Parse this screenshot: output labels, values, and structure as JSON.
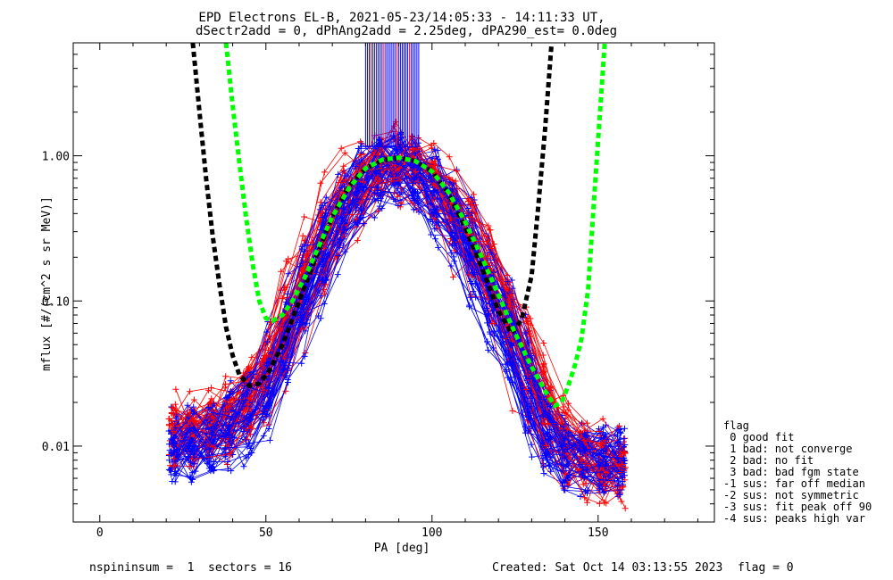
{
  "chart_data": {
    "type": "line",
    "title": "EPD Electrons EL-B, 2021-05-23/14:05:33 - 14:11:33 UT,",
    "subtitle": "dSectr2add = 0, dPhAng2add = 2.25deg, dPA290_est=   0.0deg",
    "xlabel": "PA [deg]",
    "ylabel": "mflux [#/(cm^2 s sr MeV)]",
    "xlim": [
      -8,
      185
    ],
    "ylim": [
      0.003,
      6.0
    ],
    "yscale": "log",
    "grid": false,
    "xticks": [
      0,
      50,
      100,
      150
    ],
    "xtick_labels": [
      "0",
      "50",
      "100",
      "150"
    ],
    "yticks": [
      0.01,
      0.1,
      1.0
    ],
    "ytick_labels": [
      "0.01",
      "0.10",
      "1.00"
    ],
    "colors": {
      "red": "#ff0000",
      "blue": "#0000ff",
      "black": "#000000",
      "green": "#00ff00"
    },
    "series": [
      {
        "color": "#000000",
        "style": "dashed-thick",
        "x": [
          28,
          30,
          32,
          34,
          36,
          38,
          40,
          42,
          45,
          48,
          51,
          55,
          60,
          65,
          70,
          75,
          80,
          85,
          90,
          95,
          100,
          105,
          110,
          115,
          120,
          124,
          127,
          130,
          132,
          134,
          136
        ],
        "y": [
          6.0,
          2.0,
          0.7,
          0.28,
          0.13,
          0.066,
          0.042,
          0.031,
          0.026,
          0.027,
          0.033,
          0.05,
          0.1,
          0.2,
          0.38,
          0.62,
          0.82,
          0.93,
          0.97,
          0.92,
          0.78,
          0.55,
          0.32,
          0.17,
          0.085,
          0.06,
          0.075,
          0.15,
          0.45,
          1.5,
          6.0
        ]
      },
      {
        "color": "#00ff00",
        "style": "dashed-thick",
        "x": [
          38,
          40,
          42,
          44,
          46,
          48,
          50,
          52,
          55,
          58,
          62,
          66,
          70,
          75,
          80,
          85,
          90,
          95,
          100,
          105,
          110,
          115,
          120,
          125,
          130,
          134,
          137,
          139,
          141,
          143,
          145,
          147,
          149,
          152
        ],
        "y": [
          6.0,
          2.2,
          0.9,
          0.38,
          0.18,
          0.1,
          0.076,
          0.073,
          0.08,
          0.1,
          0.15,
          0.24,
          0.38,
          0.6,
          0.82,
          0.94,
          0.97,
          0.92,
          0.78,
          0.56,
          0.35,
          0.2,
          0.11,
          0.06,
          0.035,
          0.024,
          0.019,
          0.02,
          0.026,
          0.036,
          0.055,
          0.12,
          0.6,
          6.0
        ]
      }
    ],
    "bundles": [
      {
        "name": "red spectra",
        "color": "#ff0000",
        "count": 40,
        "profile": {
          "x": [
            22,
            30,
            40,
            50,
            60,
            70,
            80,
            86,
            92,
            98,
            105,
            115,
            125,
            135,
            140,
            148,
            156
          ],
          "y": [
            0.012,
            0.013,
            0.015,
            0.03,
            0.12,
            0.35,
            0.75,
            0.9,
            0.88,
            0.78,
            0.5,
            0.2,
            0.06,
            0.015,
            0.01,
            0.008,
            0.007
          ]
        }
      },
      {
        "name": "blue spectra",
        "color": "#0000ff",
        "count": 60,
        "profile": {
          "x": [
            22,
            30,
            40,
            50,
            60,
            70,
            80,
            86,
            92,
            98,
            105,
            115,
            125,
            135,
            140,
            148,
            156
          ],
          "y": [
            0.01,
            0.011,
            0.013,
            0.025,
            0.09,
            0.3,
            0.7,
            0.85,
            0.85,
            0.72,
            0.45,
            0.17,
            0.05,
            0.012,
            0.009,
            0.008,
            0.008
          ]
        }
      },
      {
        "name": "peak spikes",
        "color": "#0000ff",
        "x_range": [
          80,
          96
        ],
        "count": 30,
        "y_top": 6.0,
        "y_bottom": 1.15
      }
    ],
    "legend": {
      "title": "flag",
      "placement": "right",
      "entries": [
        " 0 good fit",
        " 1 bad: not converge",
        " 2 bad: no fit",
        " 3 bad: bad fgm state",
        "-1 sus: far off median",
        "-2 sus: not symmetric",
        "-3 sus: fit peak off 90",
        "-4 sus: peaks high var"
      ]
    }
  },
  "footer": {
    "left": "nspininsum =  1  sectors = 16",
    "created": "Created: Sat Oct 14 03:13:55 2023",
    "flag": "flag = 0"
  }
}
